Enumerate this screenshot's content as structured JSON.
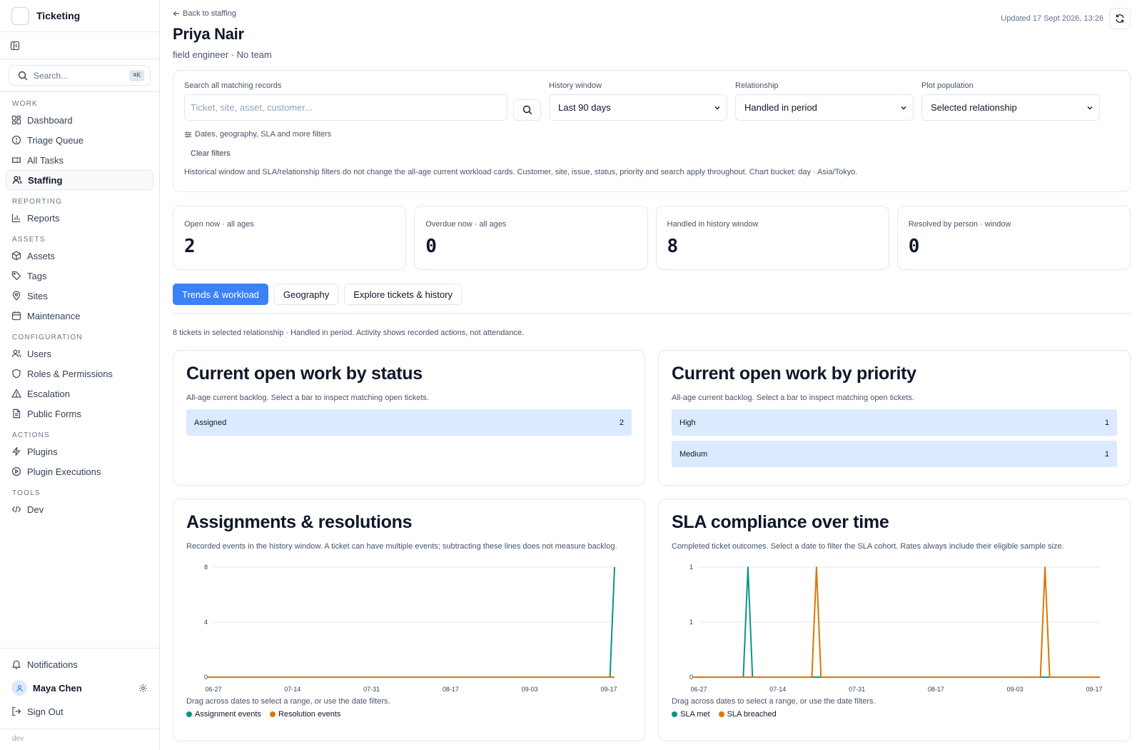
{
  "app": {
    "title": "Ticketing",
    "env": "dev"
  },
  "search": {
    "placeholder": "Search...",
    "shortcut": "⌘K"
  },
  "nav": {
    "sections": [
      {
        "label": "WORK",
        "items": [
          "Dashboard",
          "Triage Queue",
          "All Tasks",
          "Staffing"
        ]
      },
      {
        "label": "REPORTING",
        "items": [
          "Reports"
        ]
      },
      {
        "label": "ASSETS",
        "items": [
          "Assets",
          "Tags",
          "Sites",
          "Maintenance"
        ]
      },
      {
        "label": "CONFIGURATION",
        "items": [
          "Users",
          "Roles & Permissions",
          "Escalation",
          "Public Forms"
        ]
      },
      {
        "label": "ACTIONS",
        "items": [
          "Plugins",
          "Plugin Executions"
        ]
      },
      {
        "label": "TOOLS",
        "items": [
          "Dev"
        ]
      }
    ],
    "active": "Staffing"
  },
  "footer": {
    "notifications": "Notifications",
    "user": "Maya Chen",
    "sign_out": "Sign Out"
  },
  "header": {
    "back": "Back to staffing",
    "name": "Priya Nair",
    "subtitle": "field engineer · No team",
    "updated": "Updated 17 Sept 2026, 13:26"
  },
  "filters": {
    "search_label": "Search all matching records",
    "search_placeholder": "Ticket, site, asset, customer...",
    "history_label": "History window",
    "history_value": "Last 90 days",
    "relationship_label": "Relationship",
    "relationship_value": "Handled in period",
    "population_label": "Plot population",
    "population_value": "Selected relationship",
    "more": "Dates, geography, SLA and more filters",
    "clear": "Clear filters",
    "note": "Historical window and SLA/relationship filters do not change the all-age current workload cards. Customer, site, issue, status, priority and search apply throughout. Chart bucket: day · Asia/Tokyo."
  },
  "kpis": [
    {
      "label": "Open now · all ages",
      "value": "2"
    },
    {
      "label": "Overdue now · all ages",
      "value": "0"
    },
    {
      "label": "Handled in history window",
      "value": "8"
    },
    {
      "label": "Resolved by person · window",
      "value": "0"
    }
  ],
  "tabs": [
    "Trends & workload",
    "Geography",
    "Explore tickets & history"
  ],
  "relationship_note": "8 tickets in selected relationship · Handled in period. Activity shows recorded actions, not attendance.",
  "cards": {
    "status": {
      "title": "Current open work by status",
      "subtitle": "All-age current backlog. Select a bar to inspect matching open tickets.",
      "rows": [
        {
          "label": "Assigned",
          "value": "2"
        }
      ]
    },
    "priority": {
      "title": "Current open work by priority",
      "subtitle": "All-age current backlog. Select a bar to inspect matching open tickets.",
      "rows": [
        {
          "label": "High",
          "value": "1"
        },
        {
          "label": "Medium",
          "value": "1"
        }
      ]
    },
    "assignments": {
      "title": "Assignments & resolutions",
      "subtitle": "Recorded events in the history window. A ticket can have multiple events; subtracting these lines does not measure backlog.",
      "hint": "Drag across dates to select a range, or use the date filters."
    },
    "sla": {
      "title": "SLA compliance over time",
      "subtitle": "Completed ticket outcomes. Select a date to filter the SLA cohort. Rates always include their eligible sample size.",
      "hint": "Drag across dates to select a range, or use the date filters."
    }
  },
  "colors": {
    "teal": "#0d9488",
    "orange": "#d97706",
    "accent": "#3b82f6",
    "bar": "#dbeafe"
  },
  "chart_data": [
    {
      "type": "line",
      "ylim": [
        0,
        8
      ],
      "yticks": [
        "0",
        "4",
        "8"
      ],
      "xticks": [
        "06-27",
        "07-14",
        "07-31",
        "08-17",
        "09-03",
        "09-17"
      ],
      "x_range": [
        "2026-06-20",
        "2026-09-17"
      ],
      "series": [
        {
          "name": "Assignment events",
          "color": "#0d9488",
          "points": [
            [
              "2026-09-16",
              0
            ],
            [
              "2026-09-17",
              8
            ]
          ]
        },
        {
          "name": "Resolution events",
          "color": "#d97706",
          "points": [
            [
              "2026-06-20",
              0
            ],
            [
              "2026-09-17",
              0
            ]
          ]
        }
      ]
    },
    {
      "type": "line",
      "ylim": [
        0,
        1
      ],
      "yticks": [
        "0",
        "1",
        "1"
      ],
      "xticks": [
        "06-27",
        "07-14",
        "07-31",
        "08-17",
        "09-03",
        "09-17"
      ],
      "x_range": [
        "2026-06-20",
        "2026-09-17"
      ],
      "series": [
        {
          "name": "SLA met",
          "color": "#0d9488",
          "spikes": [
            "2026-07-02"
          ]
        },
        {
          "name": "SLA breached",
          "color": "#d97706",
          "spikes": [
            "2026-07-17",
            "2026-09-05"
          ]
        }
      ]
    }
  ]
}
